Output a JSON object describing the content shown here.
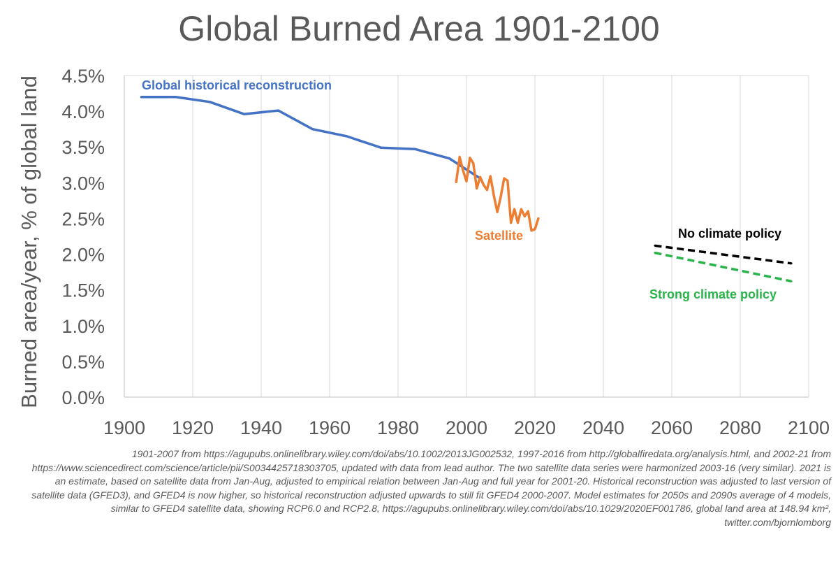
{
  "chart_data": {
    "type": "line",
    "title": "Global Burned Area 1901-2100",
    "xlabel": "",
    "ylabel": "Burned area/year, % of global land",
    "xlim": [
      1900,
      2100
    ],
    "ylim": [
      0,
      4.5
    ],
    "xticks": [
      1900,
      1920,
      1940,
      1960,
      1980,
      2000,
      2020,
      2040,
      2060,
      2080,
      2100
    ],
    "xtick_labels": [
      "1900",
      "1920",
      "1940",
      "1960",
      "1980",
      "2000",
      "2020",
      "2040",
      "2060",
      "2080",
      "2100"
    ],
    "yticks": [
      0,
      0.5,
      1.0,
      1.5,
      2.0,
      2.5,
      3.0,
      3.5,
      4.0,
      4.5
    ],
    "ytick_labels": [
      "0.0%",
      "0.5%",
      "1.0%",
      "1.5%",
      "2.0%",
      "2.5%",
      "3.0%",
      "3.5%",
      "4.0%",
      "4.5%"
    ],
    "grid": "vertical",
    "series": [
      {
        "name": "Global historical reconstruction",
        "color": "#4472c4",
        "dash": "solid",
        "x": [
          1905,
          1915,
          1925,
          1935,
          1945,
          1955,
          1965,
          1975,
          1985,
          1995,
          2004
        ],
        "y": [
          4.2,
          4.2,
          4.13,
          3.96,
          4.01,
          3.75,
          3.65,
          3.49,
          3.47,
          3.34,
          3.06
        ]
      },
      {
        "name": "Satellite",
        "color": "#ed7d31",
        "dash": "solid",
        "x": [
          1997,
          1998,
          1999,
          2000,
          2001,
          2002,
          2003,
          2004,
          2005,
          2006,
          2007,
          2008,
          2009,
          2010,
          2011,
          2012,
          2013,
          2014,
          2015,
          2016,
          2017,
          2018,
          2019,
          2020,
          2021
        ],
        "y": [
          3.01,
          3.36,
          3.17,
          3.02,
          3.35,
          3.27,
          2.92,
          3.08,
          2.97,
          2.9,
          3.09,
          2.82,
          2.59,
          2.8,
          3.06,
          3.03,
          2.44,
          2.63,
          2.44,
          2.63,
          2.53,
          2.6,
          2.33,
          2.35,
          2.5
        ]
      },
      {
        "name": "No climate policy",
        "color": "#000000",
        "dash": "dashed",
        "x": [
          2055,
          2095
        ],
        "y": [
          2.12,
          1.87
        ]
      },
      {
        "name": "Strong climate policy",
        "color": "#2ab34a",
        "dash": "dashed",
        "x": [
          2055,
          2095
        ],
        "y": [
          2.02,
          1.62
        ]
      }
    ],
    "annotations": {
      "historical": "Global historical reconstruction",
      "satellite": "Satellite",
      "no_policy": "No climate policy",
      "strong_policy": "Strong climate policy"
    }
  },
  "footnote": "1901-2007 from https://agupubs.onlinelibrary.wiley.com/doi/abs/10.1002/2013JG002532, 1997-2016 from http://globalfiredata.org/analysis.html, and 2002-21 from https://www.sciencedirect.com/science/article/pii/S0034425718303705, updated with data from lead author. The two satellite data series were harmonized 2003-16 (very similar). 2021 is an estimate, based on satellite data from Jan-Aug, adjusted to empirical relation between Jan-Aug and full year for 2001-20. Historical reconstruction was adjusted to last version of satellite data (GFED3), and GFED4 is now higher, so historical reconstruction adjusted upwards to still fit GFED4 2000-2007. Model estimates for 2050s and 2090s average of 4 models, similar to GFED4 satellite data, showing RCP6.0 and RCP2.8, https://agupubs.onlinelibrary.wiley.com/doi/abs/10.1029/2020EF001786, global land area at 148.94 km², twitter.com/bjornlomborg"
}
